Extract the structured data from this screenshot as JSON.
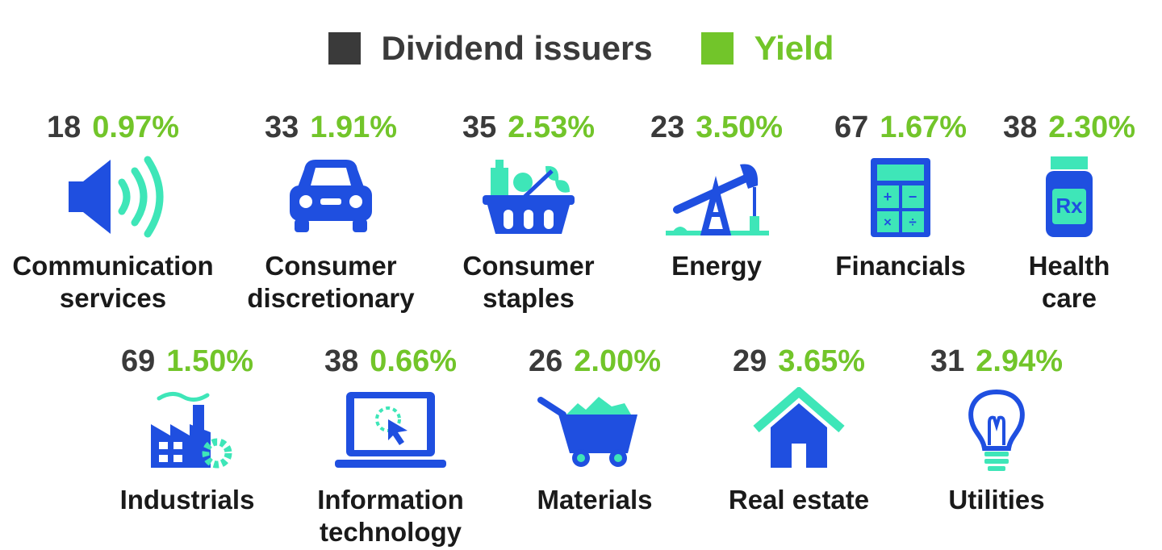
{
  "legend": {
    "issuers_label": "Dividend issuers",
    "yield_label": "Yield"
  },
  "colors": {
    "issuers": "#3a3a3a",
    "yield": "#72c52a",
    "icon_blue": "#1f4fe0",
    "icon_teal": "#3ee6b8"
  },
  "chart_data": {
    "type": "table",
    "title": "",
    "series": [
      {
        "name": "Dividend issuers",
        "values": [
          18,
          33,
          35,
          23,
          67,
          38,
          69,
          38,
          26,
          29,
          31
        ]
      },
      {
        "name": "Yield",
        "values": [
          "0.97%",
          "1.91%",
          "2.53%",
          "3.50%",
          "1.67%",
          "2.30%",
          "1.50%",
          "0.66%",
          "2.00%",
          "3.65%",
          "2.94%"
        ]
      }
    ],
    "sectors": [
      {
        "label": [
          "Communication",
          "services"
        ],
        "count": "18",
        "yield": "0.97%",
        "icon": "speaker-icon"
      },
      {
        "label": [
          "Consumer",
          "discretionary"
        ],
        "count": "33",
        "yield": "1.91%",
        "icon": "car-icon"
      },
      {
        "label": [
          "Consumer",
          "staples"
        ],
        "count": "35",
        "yield": "2.53%",
        "icon": "grocery-basket-icon"
      },
      {
        "label": [
          "Energy",
          ""
        ],
        "count": "23",
        "yield": "3.50%",
        "icon": "oil-pump-icon"
      },
      {
        "label": [
          "Financials",
          ""
        ],
        "count": "67",
        "yield": "1.67%",
        "icon": "calculator-icon"
      },
      {
        "label": [
          "Health",
          "care"
        ],
        "count": "38",
        "yield": "2.30%",
        "icon": "medicine-bottle-icon"
      },
      {
        "label": [
          "Industrials",
          ""
        ],
        "count": "69",
        "yield": "1.50%",
        "icon": "factory-icon"
      },
      {
        "label": [
          "Information",
          "technology"
        ],
        "count": "38",
        "yield": "0.66%",
        "icon": "laptop-icon"
      },
      {
        "label": [
          "Materials",
          ""
        ],
        "count": "26",
        "yield": "2.00%",
        "icon": "mine-cart-icon"
      },
      {
        "label": [
          "Real estate",
          ""
        ],
        "count": "29",
        "yield": "3.65%",
        "icon": "house-icon"
      },
      {
        "label": [
          "Utilities",
          ""
        ],
        "count": "31",
        "yield": "2.94%",
        "icon": "light-bulb-icon"
      }
    ]
  }
}
